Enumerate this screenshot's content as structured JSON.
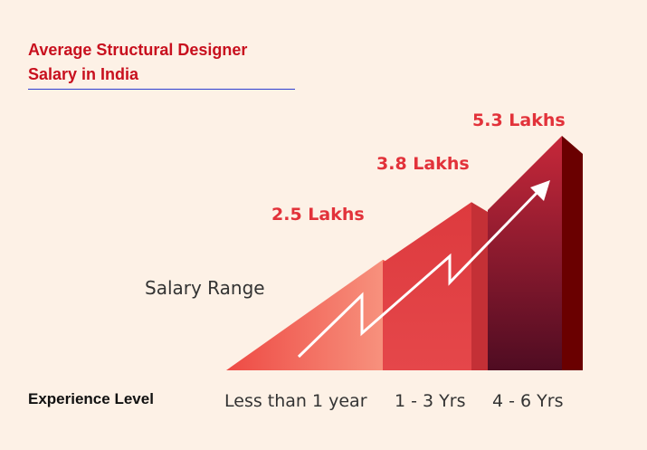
{
  "title_lines": [
    "Average Structural Designer",
    "Salary in India"
  ],
  "y_axis_label": "Salary Range",
  "x_axis_label": "Experience Level",
  "colors": {
    "title": "#c8101e",
    "value_label": "#e2323a",
    "underline": "#2f3fd0",
    "background": "#fdf1e6"
  },
  "chart_data": {
    "type": "bar",
    "title": "Average Structural Designer Salary in India",
    "xlabel": "Experience Level",
    "ylabel": "Salary Range",
    "categories": [
      "Less than 1 year",
      "1 - 3 Yrs",
      "4 - 6 Yrs"
    ],
    "values": [
      2.5,
      3.8,
      5.3
    ],
    "value_labels": [
      "2.5 Lakhs",
      "3.8 Lakhs",
      "5.3 Lakhs"
    ],
    "unit": "Lakhs",
    "trend_arrow": "up"
  }
}
